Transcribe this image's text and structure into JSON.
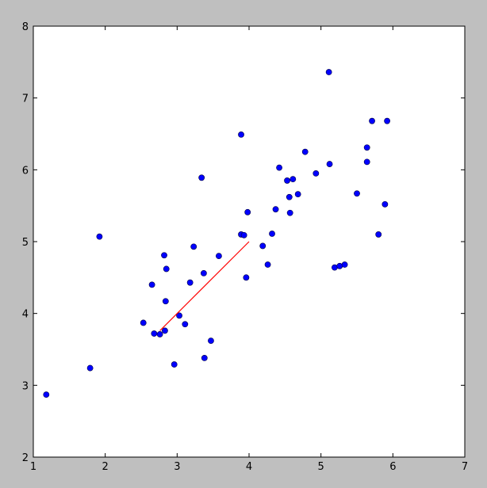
{
  "chart_data": {
    "type": "scatter",
    "title": "",
    "xlabel": "",
    "ylabel": "",
    "xlim": [
      1,
      7
    ],
    "ylim": [
      2,
      8
    ],
    "xticks": [
      "1",
      "2",
      "3",
      "4",
      "5",
      "6",
      "7"
    ],
    "yticks": [
      "2",
      "3",
      "4",
      "5",
      "6",
      "7",
      "8"
    ],
    "grid": false,
    "colors": {
      "points": "#0000ff",
      "line": "#ff0000",
      "background": "#bfbfbf"
    },
    "points": [
      [
        1.18,
        2.87
      ],
      [
        1.79,
        3.24
      ],
      [
        1.92,
        5.07
      ],
      [
        2.53,
        3.87
      ],
      [
        2.65,
        4.4
      ],
      [
        2.68,
        3.72
      ],
      [
        2.76,
        3.71
      ],
      [
        2.82,
        4.81
      ],
      [
        2.83,
        3.76
      ],
      [
        2.84,
        4.17
      ],
      [
        2.85,
        4.62
      ],
      [
        2.96,
        3.29
      ],
      [
        3.03,
        3.97
      ],
      [
        3.11,
        3.85
      ],
      [
        3.18,
        4.43
      ],
      [
        3.23,
        4.93
      ],
      [
        3.34,
        5.89
      ],
      [
        3.37,
        4.56
      ],
      [
        3.38,
        3.38
      ],
      [
        3.47,
        3.62
      ],
      [
        3.58,
        4.8
      ],
      [
        3.89,
        6.49
      ],
      [
        3.89,
        5.1
      ],
      [
        3.93,
        5.09
      ],
      [
        3.96,
        4.5
      ],
      [
        3.98,
        5.41
      ],
      [
        4.19,
        4.94
      ],
      [
        4.26,
        4.68
      ],
      [
        4.32,
        5.11
      ],
      [
        4.37,
        5.45
      ],
      [
        4.42,
        6.03
      ],
      [
        4.53,
        5.85
      ],
      [
        4.56,
        5.62
      ],
      [
        4.57,
        5.4
      ],
      [
        4.61,
        5.87
      ],
      [
        4.68,
        5.66
      ],
      [
        4.78,
        6.25
      ],
      [
        4.93,
        5.95
      ],
      [
        5.11,
        7.36
      ],
      [
        5.12,
        6.08
      ],
      [
        5.19,
        4.64
      ],
      [
        5.26,
        4.66
      ],
      [
        5.33,
        4.68
      ],
      [
        5.5,
        5.67
      ],
      [
        5.64,
        6.31
      ],
      [
        5.64,
        6.11
      ],
      [
        5.71,
        6.68
      ],
      [
        5.8,
        5.1
      ],
      [
        5.89,
        5.52
      ],
      [
        5.92,
        6.68
      ]
    ],
    "line": [
      [
        2.76,
        3.76
      ],
      [
        4.0,
        5.0
      ]
    ]
  }
}
